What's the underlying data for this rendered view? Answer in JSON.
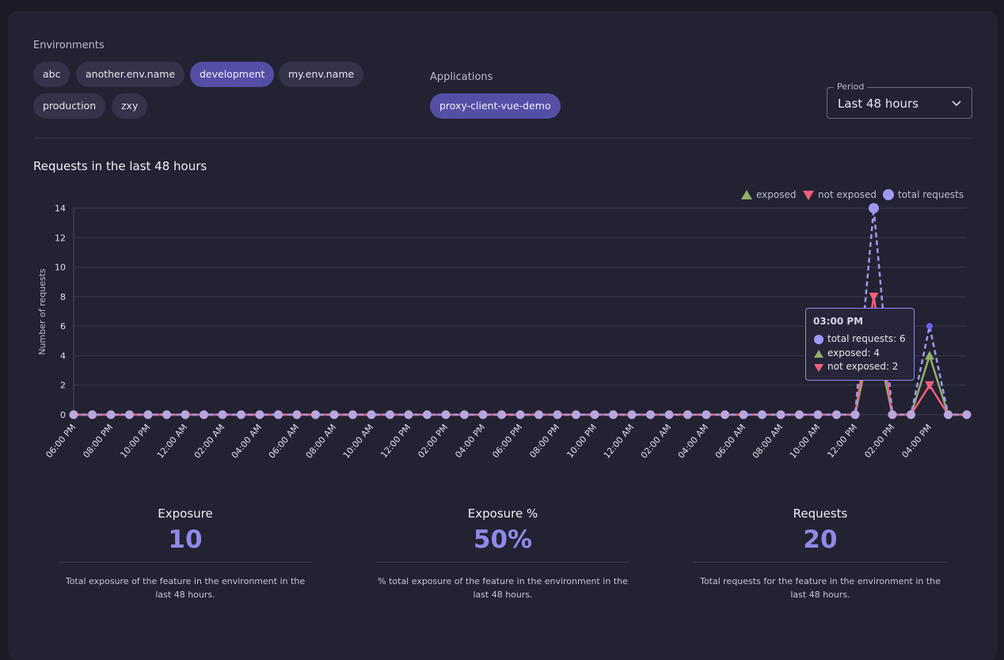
{
  "environments": {
    "label": "Environments",
    "chips": [
      {
        "label": "abc",
        "selected": false
      },
      {
        "label": "another.env.name",
        "selected": false
      },
      {
        "label": "development",
        "selected": true
      },
      {
        "label": "my.env.name",
        "selected": false
      },
      {
        "label": "production",
        "selected": false
      },
      {
        "label": "zxy",
        "selected": false
      }
    ]
  },
  "applications": {
    "label": "Applications",
    "chips": [
      {
        "label": "proxy-client-vue-demo",
        "selected": true
      }
    ]
  },
  "period": {
    "label": "Period",
    "value": "Last 48 hours",
    "icon": "chevron-down-icon"
  },
  "chart": {
    "title": "Requests in the last 48 hours"
  },
  "chart_data": {
    "type": "line",
    "ylabel": "Number of requests",
    "ylim": [
      0,
      14
    ],
    "yticks": [
      0,
      2,
      4,
      6,
      8,
      10,
      12,
      14
    ],
    "x_tick_labels": [
      "06:00 PM",
      "08:00 PM",
      "10:00 PM",
      "12:00 AM",
      "02:00 AM",
      "04:00 AM",
      "06:00 AM",
      "08:00 AM",
      "10:00 AM",
      "12:00 PM",
      "02:00 PM",
      "04:00 PM",
      "06:00 PM",
      "08:00 PM",
      "10:00 PM",
      "12:00 AM",
      "02:00 AM",
      "04:00 AM",
      "06:00 AM",
      "08:00 AM",
      "10:00 AM",
      "12:00 PM",
      "02:00 PM",
      "04:00 PM"
    ],
    "legend_position": "top-right",
    "series": [
      {
        "name": "exposed",
        "color": "#8fb06a",
        "marker": "triangle-up",
        "values": [
          0,
          0,
          0,
          0,
          0,
          0,
          0,
          0,
          0,
          0,
          0,
          0,
          0,
          0,
          0,
          0,
          0,
          0,
          0,
          0,
          0,
          0,
          0,
          0,
          0,
          0,
          0,
          0,
          0,
          0,
          0,
          0,
          0,
          0,
          0,
          0,
          0,
          0,
          0,
          0,
          0,
          0,
          0,
          6,
          0,
          0,
          4,
          0,
          0
        ]
      },
      {
        "name": "not exposed",
        "color": "#f2607a",
        "marker": "triangle-down",
        "values": [
          0,
          0,
          0,
          0,
          0,
          0,
          0,
          0,
          0,
          0,
          0,
          0,
          0,
          0,
          0,
          0,
          0,
          0,
          0,
          0,
          0,
          0,
          0,
          0,
          0,
          0,
          0,
          0,
          0,
          0,
          0,
          0,
          0,
          0,
          0,
          0,
          0,
          0,
          0,
          0,
          0,
          0,
          0,
          8,
          0,
          0,
          2,
          0,
          0
        ]
      },
      {
        "name": "total requests",
        "color": "#9d98f2",
        "marker": "circle",
        "values": [
          0,
          0,
          0,
          0,
          0,
          0,
          0,
          0,
          0,
          0,
          0,
          0,
          0,
          0,
          0,
          0,
          0,
          0,
          0,
          0,
          0,
          0,
          0,
          0,
          0,
          0,
          0,
          0,
          0,
          0,
          0,
          0,
          0,
          0,
          0,
          0,
          0,
          0,
          0,
          0,
          0,
          0,
          0,
          14,
          0,
          0,
          6,
          0,
          0
        ]
      }
    ]
  },
  "tooltip": {
    "time": "03:00 PM",
    "total": "total requests: 6",
    "exposed": "exposed: 4",
    "not_exposed": "not exposed: 2"
  },
  "stats": [
    {
      "title": "Exposure",
      "value": "10",
      "desc": "Total exposure of the feature in the environment in the last 48 hours."
    },
    {
      "title": "Exposure %",
      "value": "50%",
      "desc": "% total exposure of the feature in the environment in the last 48 hours."
    },
    {
      "title": "Requests",
      "value": "20",
      "desc": "Total requests for the feature in the environment in the last 48 hours."
    }
  ]
}
